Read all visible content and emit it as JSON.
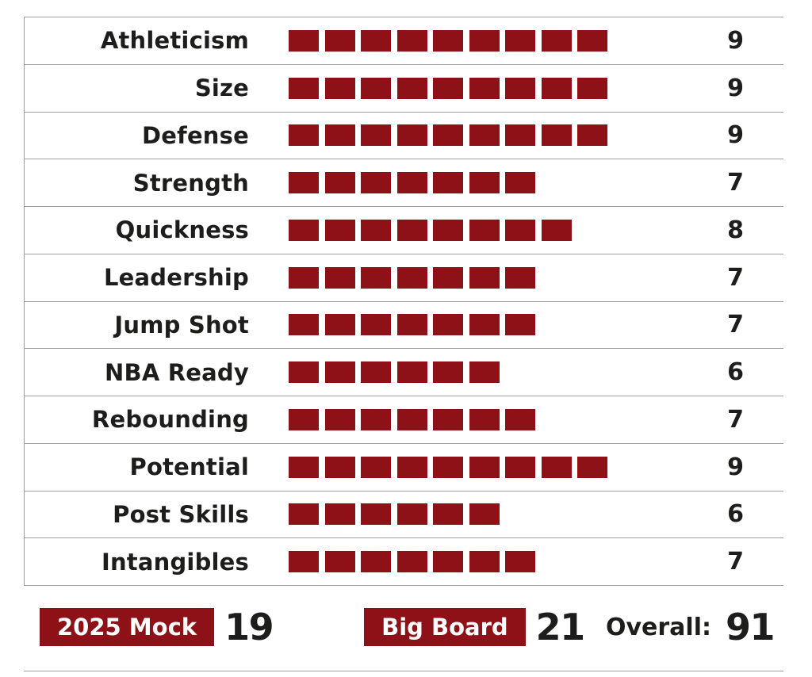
{
  "colors": {
    "maroon": "#8e1118",
    "text": "#1d1d1b",
    "rule": "#9e9e9e"
  },
  "chart_data": {
    "type": "bar",
    "title": "",
    "categories": [
      "Athleticism",
      "Size",
      "Defense",
      "Strength",
      "Quickness",
      "Leadership",
      "Jump Shot",
      "NBA Ready",
      "Rebounding",
      "Potential",
      "Post Skills",
      "Intangibles"
    ],
    "values": [
      9,
      9,
      9,
      7,
      8,
      7,
      7,
      6,
      7,
      9,
      6,
      7
    ],
    "xlabel": "",
    "ylabel": "",
    "ylim": [
      0,
      10
    ],
    "legend": false,
    "grid": false
  },
  "footer": {
    "mock": {
      "label": "2025 Mock",
      "value": "19"
    },
    "big_board": {
      "label": "Big Board",
      "value": "21"
    },
    "overall": {
      "label": "Overall:",
      "value": "91"
    }
  }
}
